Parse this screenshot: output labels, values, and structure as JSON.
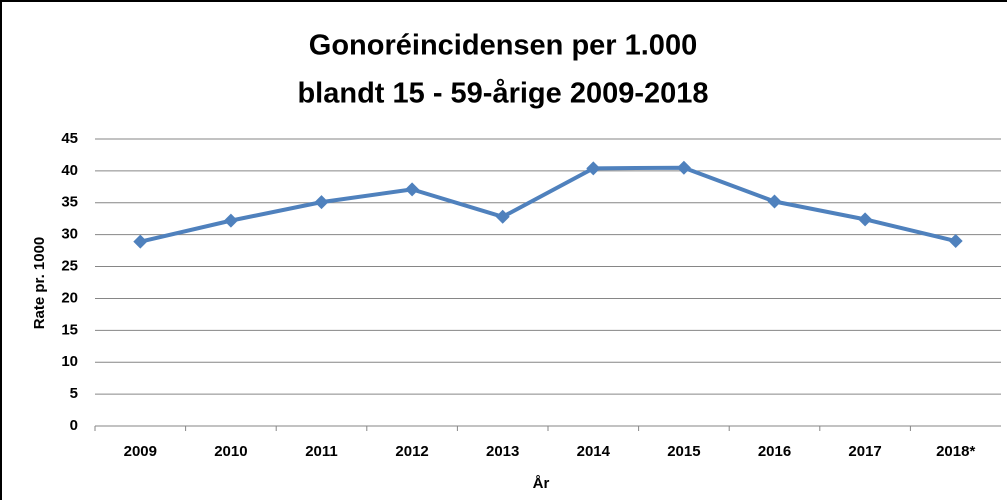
{
  "chart_data": {
    "type": "line",
    "title": [
      "Gonoréincidensen per 1.000",
      "blandt 15 - 59-årige 2009-2018"
    ],
    "x_label": "År",
    "y_label": "Rate pr. 1000",
    "categories": [
      "2009",
      "2010",
      "2011",
      "2012",
      "2013",
      "2014",
      "2015",
      "2016",
      "2017",
      "2018*"
    ],
    "series": [
      {
        "name": "Rate",
        "color": "#4f81bd",
        "values": [
          28.9,
          32.2,
          35.1,
          37.1,
          32.8,
          40.4,
          40.5,
          35.2,
          32.4,
          29.0
        ]
      }
    ],
    "ylim": [
      0,
      45
    ],
    "yticks": [
      0,
      5,
      10,
      15,
      20,
      25,
      30,
      35,
      40,
      45
    ],
    "grid": true,
    "legend": false
  }
}
